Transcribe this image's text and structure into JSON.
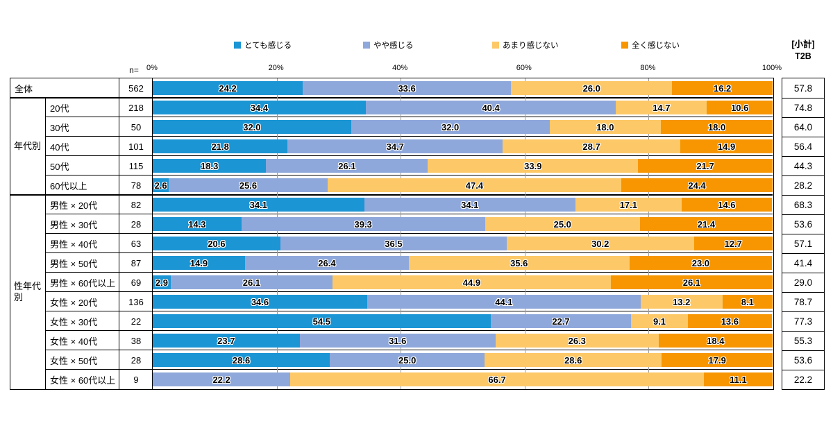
{
  "header": {
    "n_label": "n=",
    "t2b_title_line1": "[小計]",
    "t2b_title_line2": "T2B"
  },
  "chart_data": {
    "type": "bar",
    "orientation": "horizontal_stacked",
    "unit": "%",
    "xlim": [
      0,
      100
    ],
    "grid": true,
    "legend_position": "top",
    "axis_ticks": [
      "0%",
      "20%",
      "40%",
      "60%",
      "80%",
      "100%"
    ],
    "series_names": [
      "とても感じる",
      "やや感じる",
      "あまり感じない",
      "全く感じない"
    ],
    "series_colors": [
      "#1B95D4",
      "#8FA8DB",
      "#FDC867",
      "#F79600"
    ],
    "groups": [
      {
        "label": "年代別",
        "start_row": 1,
        "row_count": 5
      },
      {
        "label": "性年代別",
        "start_row": 6,
        "row_count": 10
      }
    ],
    "rows": [
      {
        "label": "全体",
        "merged": true,
        "n": 562,
        "values": [
          24.2,
          33.6,
          26.0,
          16.2
        ],
        "t2b": "57.8"
      },
      {
        "label": "20代",
        "n": 218,
        "values": [
          34.4,
          40.4,
          14.7,
          10.6
        ],
        "t2b": "74.8"
      },
      {
        "label": "30代",
        "n": 50,
        "values": [
          32.0,
          32.0,
          18.0,
          18.0
        ],
        "t2b": "64.0"
      },
      {
        "label": "40代",
        "n": 101,
        "values": [
          21.8,
          34.7,
          28.7,
          14.9
        ],
        "t2b": "56.4"
      },
      {
        "label": "50代",
        "n": 115,
        "values": [
          18.3,
          26.1,
          33.9,
          21.7
        ],
        "t2b": "44.3"
      },
      {
        "label": "60代以上",
        "n": 78,
        "values": [
          2.6,
          25.6,
          47.4,
          24.4
        ],
        "t2b": "28.2"
      },
      {
        "label": "男性 × 20代",
        "n": 82,
        "values": [
          34.1,
          34.1,
          17.1,
          14.6
        ],
        "t2b": "68.3"
      },
      {
        "label": "男性 × 30代",
        "n": 28,
        "values": [
          14.3,
          39.3,
          25.0,
          21.4
        ],
        "t2b": "53.6"
      },
      {
        "label": "男性 × 40代",
        "n": 63,
        "values": [
          20.6,
          36.5,
          30.2,
          12.7
        ],
        "t2b": "57.1"
      },
      {
        "label": "男性 × 50代",
        "n": 87,
        "values": [
          14.9,
          26.4,
          35.6,
          23.0
        ],
        "t2b": "41.4"
      },
      {
        "label": "男性 × 60代以上",
        "n": 69,
        "values": [
          2.9,
          26.1,
          44.9,
          26.1
        ],
        "t2b": "29.0"
      },
      {
        "label": "女性 × 20代",
        "n": 136,
        "values": [
          34.6,
          44.1,
          13.2,
          8.1
        ],
        "t2b": "78.7"
      },
      {
        "label": "女性 × 30代",
        "n": 22,
        "values": [
          54.5,
          22.7,
          9.1,
          13.6
        ],
        "t2b": "77.3"
      },
      {
        "label": "女性 × 40代",
        "n": 38,
        "values": [
          23.7,
          31.6,
          26.3,
          18.4
        ],
        "t2b": "55.3"
      },
      {
        "label": "女性 × 50代",
        "n": 28,
        "values": [
          28.6,
          25.0,
          28.6,
          17.9
        ],
        "t2b": "53.6"
      },
      {
        "label": "女性 × 60代以上",
        "n": 9,
        "values": [
          0,
          22.2,
          66.7,
          11.1
        ],
        "t2b": "22.2"
      }
    ]
  }
}
